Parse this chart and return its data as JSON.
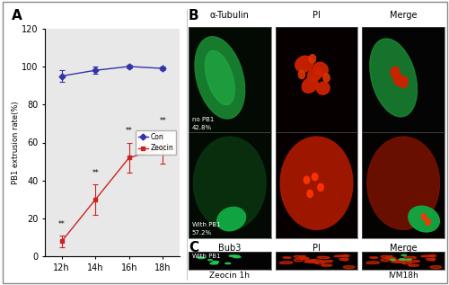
{
  "title_A": "A",
  "title_B": "B",
  "title_C": "C",
  "ylabel": "PB1 extrusion rate(%)",
  "xtick_labels": [
    "12h",
    "14h",
    "16h",
    "18h"
  ],
  "x_values": [
    0,
    1,
    2,
    3
  ],
  "con_mean": [
    95,
    98,
    100,
    99
  ],
  "con_err": [
    3,
    2,
    1,
    1
  ],
  "zeocin_mean": [
    8,
    30,
    52,
    57
  ],
  "zeocin_err": [
    3,
    8,
    8,
    8
  ],
  "con_color": "#3333aa",
  "zeocin_color": "#cc2222",
  "ylim": [
    0,
    120
  ],
  "yticks": [
    0,
    20,
    40,
    60,
    80,
    100,
    120
  ],
  "legend_con": "Con",
  "legend_zeocin": "Zeocin",
  "B_header_labels": [
    "α-Tubulin",
    "PI",
    "Merge"
  ],
  "B_row1_label": "no PB1",
  "B_row2_label": "With PB1",
  "B_pct1": "42.8%",
  "B_pct2": "57.2%",
  "C_header_labels": [
    "Bub3",
    "PI",
    "Merge"
  ],
  "C_row1_label": "With PB1",
  "C_bottom_label1": "Zeocin 1h",
  "C_bottom_label2": "IVM18h",
  "figure_bg": "#ffffff",
  "plot_bg": "#e8e8e8"
}
